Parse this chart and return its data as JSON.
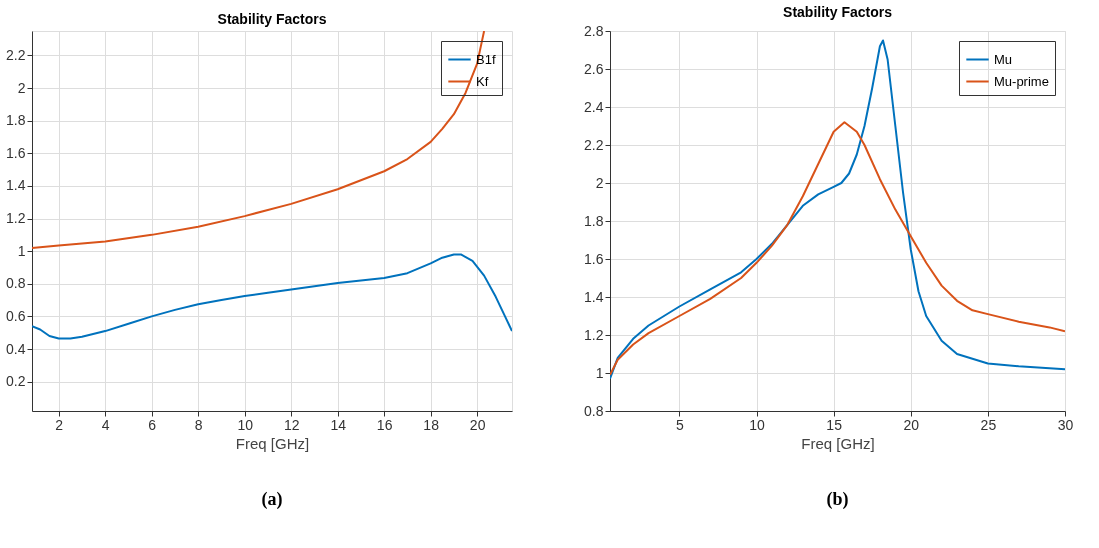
{
  "chart_data": [
    {
      "type": "line",
      "title": "Stability Factors",
      "xlabel": "Freq [GHz]",
      "xlim": [
        0.85,
        21.5
      ],
      "xticks": [
        2,
        4,
        6,
        8,
        10,
        12,
        14,
        16,
        18,
        20
      ],
      "ylim": [
        0.02,
        2.35
      ],
      "yticks": [
        0.2,
        0.4,
        0.6,
        0.8,
        1,
        1.2,
        1.4,
        1.6,
        1.8,
        2,
        2.2
      ],
      "grid": true,
      "legend": "top right",
      "annotations": [
        "(a)"
      ],
      "series": [
        {
          "name": "B1f",
          "color": "#0072bd",
          "x": [
            0.85,
            1.2,
            1.6,
            2,
            2.5,
            3,
            4,
            5,
            6,
            7,
            8,
            9,
            10,
            11,
            12,
            13,
            14,
            15,
            16,
            17,
            18,
            18.5,
            19,
            19.3,
            19.8,
            20.3,
            20.8,
            21.2,
            21.5
          ],
          "values": [
            0.54,
            0.52,
            0.48,
            0.465,
            0.465,
            0.475,
            0.51,
            0.555,
            0.6,
            0.64,
            0.675,
            0.7,
            0.725,
            0.745,
            0.765,
            0.785,
            0.805,
            0.82,
            0.835,
            0.865,
            0.925,
            0.96,
            0.98,
            0.98,
            0.94,
            0.85,
            0.72,
            0.6,
            0.51
          ]
        },
        {
          "name": "Kf",
          "color": "#d95319",
          "x": [
            0.85,
            2,
            4,
            6,
            8,
            10,
            12,
            14,
            16,
            17,
            18,
            18.5,
            19,
            19.5,
            20,
            20.3
          ],
          "values": [
            1.02,
            1.035,
            1.06,
            1.1,
            1.15,
            1.215,
            1.29,
            1.38,
            1.49,
            1.565,
            1.67,
            1.75,
            1.84,
            1.97,
            2.15,
            2.35
          ]
        }
      ]
    },
    {
      "type": "line",
      "title": "Stability Factors",
      "xlabel": "Freq [GHz]",
      "xlim": [
        0.5,
        30
      ],
      "xticks": [
        5,
        10,
        15,
        20,
        25,
        30
      ],
      "ylim": [
        0.8,
        2.8
      ],
      "yticks": [
        0.8,
        1,
        1.2,
        1.4,
        1.6,
        1.8,
        2,
        2.2,
        2.4,
        2.6,
        2.8
      ],
      "grid": true,
      "legend": "top right",
      "annotations": [
        "(b)"
      ],
      "series": [
        {
          "name": "Mu",
          "color": "#0072bd",
          "x": [
            0.5,
            1,
            2,
            3,
            5,
            7,
            9,
            10,
            11,
            12,
            13,
            14,
            15,
            15.5,
            16,
            16.5,
            17,
            17.5,
            18,
            18.2,
            18.5,
            19,
            19.5,
            20,
            20.5,
            21,
            22,
            23,
            25,
            27,
            30
          ],
          "values": [
            0.97,
            1.08,
            1.18,
            1.25,
            1.35,
            1.44,
            1.53,
            1.6,
            1.68,
            1.78,
            1.88,
            1.94,
            1.98,
            2.0,
            2.05,
            2.15,
            2.3,
            2.5,
            2.72,
            2.75,
            2.65,
            2.3,
            1.95,
            1.65,
            1.43,
            1.3,
            1.17,
            1.1,
            1.05,
            1.035,
            1.02
          ]
        },
        {
          "name": "Mu-prime",
          "color": "#d95319",
          "x": [
            0.5,
            1,
            2,
            3,
            5,
            7,
            9,
            10,
            11,
            12,
            13,
            14,
            15,
            15.7,
            16.5,
            17,
            18,
            19,
            20,
            21,
            22,
            23,
            24,
            25,
            27,
            29,
            30
          ],
          "values": [
            0.99,
            1.07,
            1.15,
            1.21,
            1.3,
            1.39,
            1.5,
            1.58,
            1.67,
            1.78,
            1.93,
            2.1,
            2.27,
            2.32,
            2.27,
            2.2,
            2.02,
            1.86,
            1.72,
            1.58,
            1.46,
            1.38,
            1.33,
            1.31,
            1.27,
            1.24,
            1.22
          ]
        }
      ]
    }
  ]
}
